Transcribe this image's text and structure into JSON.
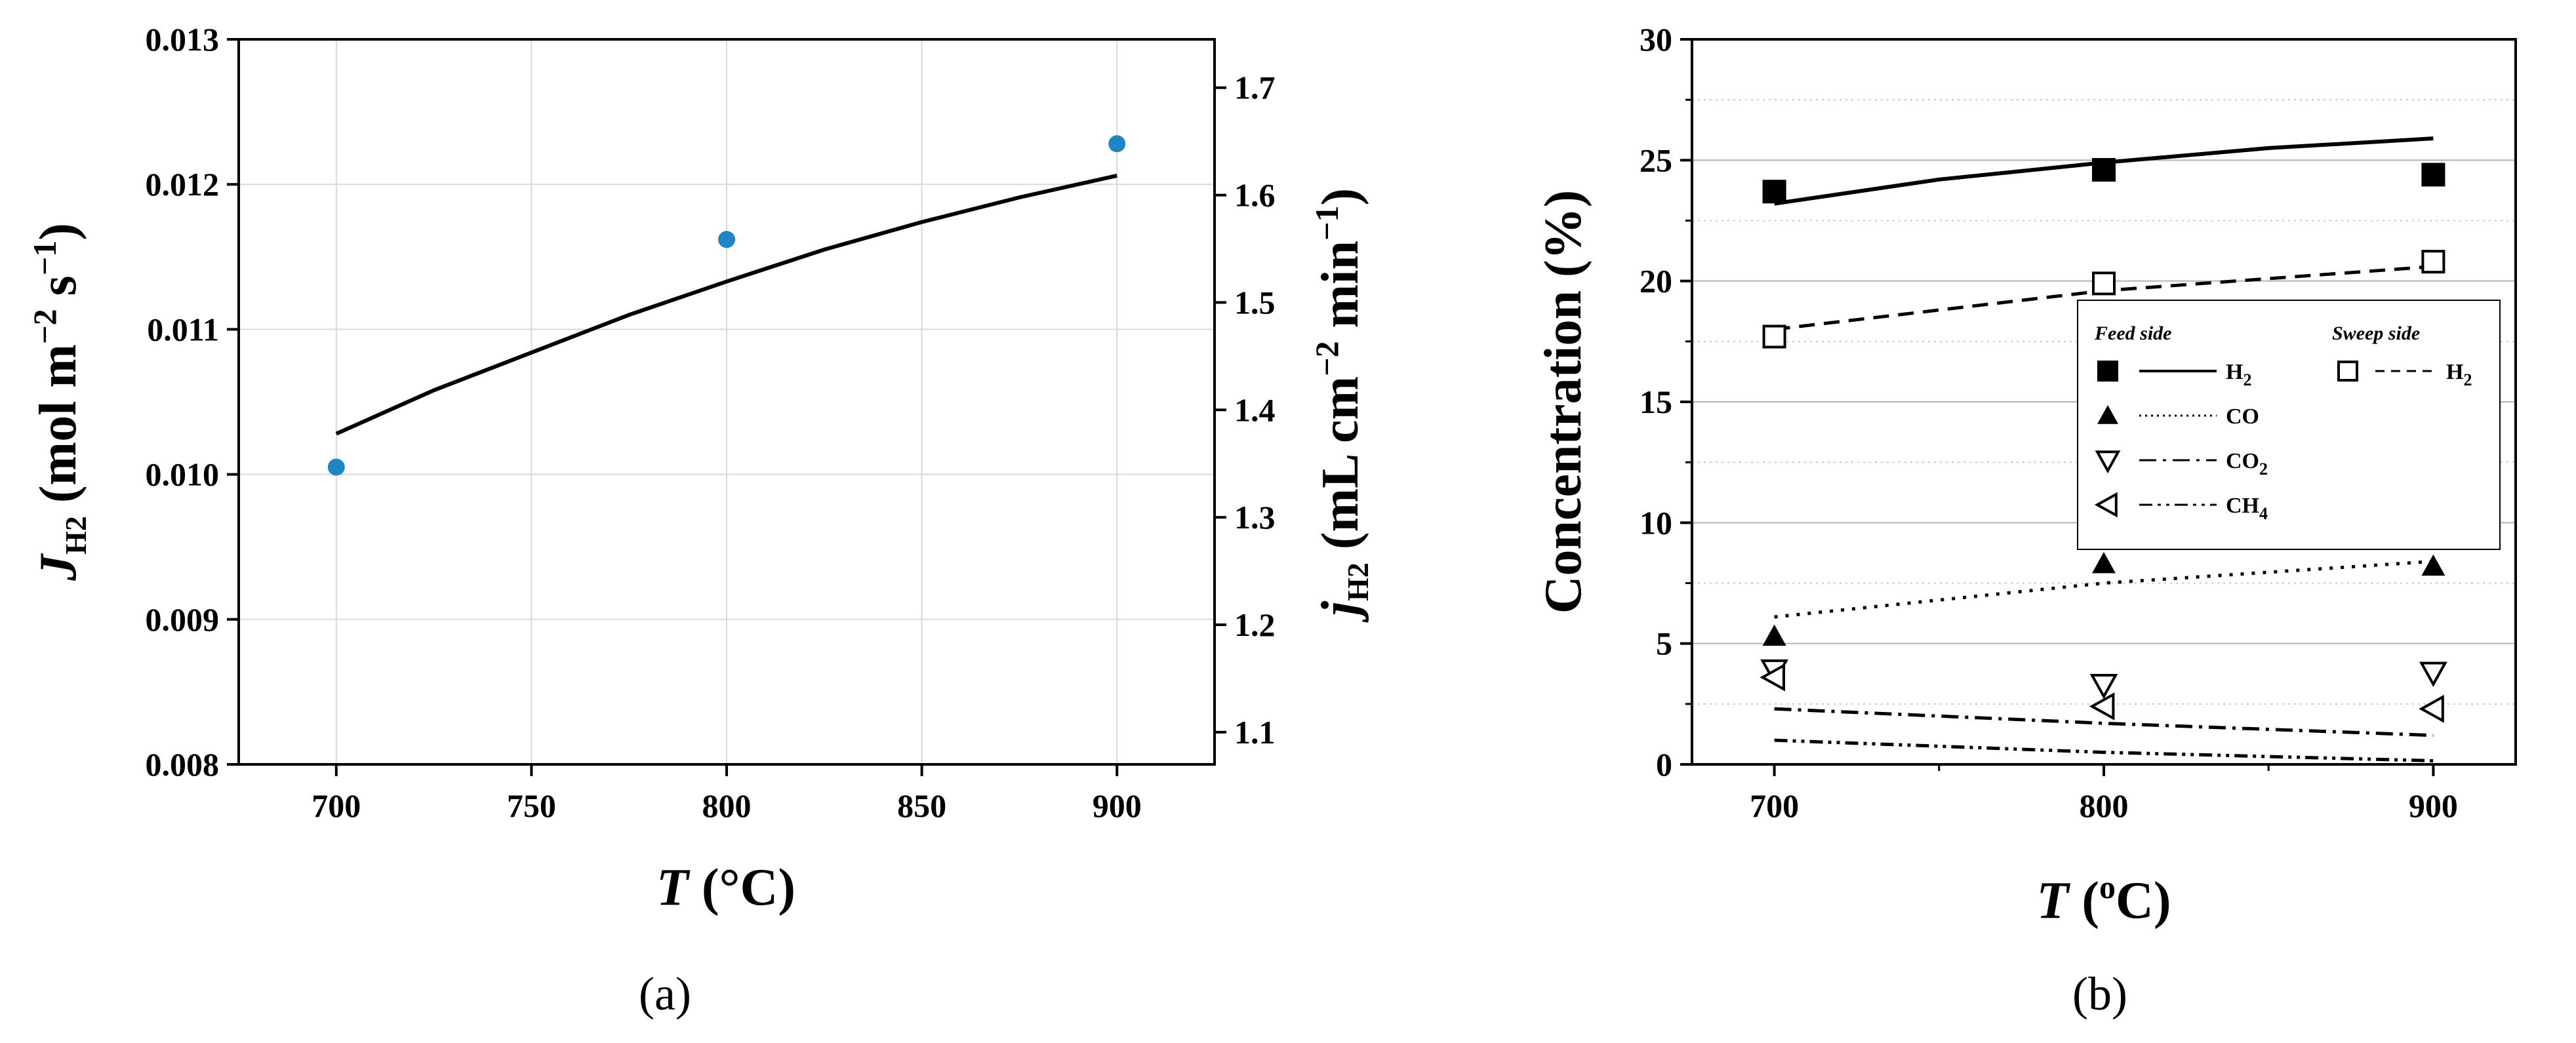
{
  "colors": {
    "point_a": "#1f86c6",
    "line": "#000000",
    "grid": "#d9d9d9",
    "grid_b": "#b3b3b3"
  },
  "chart_data": [
    {
      "id": "a",
      "type": "scatter",
      "panel_label": "(a)",
      "xlabel": "T (°C)",
      "ylabel": "J_H2 (mol m^-2 s^-1)",
      "ylabel_right": "j_H2 (mL cm^-2 min^-1)",
      "xlim": [
        675,
        925
      ],
      "ylim": [
        0.008,
        0.013
      ],
      "ylim_right": [
        1.07,
        1.745
      ],
      "xticks": [
        "700",
        "750",
        "800",
        "850",
        "900"
      ],
      "yticks": [
        "0.008",
        "0.009",
        "0.010",
        "0.011",
        "0.012",
        "0.013"
      ],
      "yticks_right": [
        "1.1",
        "1.2",
        "1.3",
        "1.4",
        "1.5",
        "1.6",
        "1.7"
      ],
      "grid": true,
      "points": {
        "x": [
          700,
          800,
          900
        ],
        "y": [
          0.01005,
          0.01162,
          0.01228
        ]
      },
      "line": {
        "x": [
          700,
          725,
          750,
          775,
          800,
          825,
          850,
          875,
          900
        ],
        "y": [
          0.01028,
          0.01058,
          0.01084,
          0.0111,
          0.01133,
          0.01155,
          0.01174,
          0.01191,
          0.01206
        ]
      }
    },
    {
      "id": "b",
      "type": "scatter",
      "panel_label": "(b)",
      "xlabel": "T (oC)",
      "ylabel": "Concentration (%)",
      "xlim": [
        675,
        925
      ],
      "ylim": [
        0,
        30
      ],
      "xticks": [
        "700",
        "800",
        "900"
      ],
      "yticks": [
        "0",
        "5",
        "10",
        "15",
        "20",
        "25",
        "30"
      ],
      "grid": true,
      "legend": {
        "placement": "right-middle",
        "feed_header": "Feed side",
        "sweep_header": "Sweep side",
        "entries": [
          {
            "label": "H",
            "sub": "2",
            "marker": "filled-square",
            "dash": "solid"
          },
          {
            "label": "CO",
            "sub": "",
            "marker": "filled-triangle",
            "dash": "dot"
          },
          {
            "label": "CO",
            "sub": "2",
            "marker": "open-triangle-down",
            "dash": "dashdot"
          },
          {
            "label": "CH",
            "sub": "4",
            "marker": "open-triangle-left",
            "dash": "dashdotdot"
          }
        ],
        "sweep_entry": {
          "label": "H",
          "sub": "2",
          "marker": "open-square",
          "dash": "dash"
        }
      },
      "series": [
        {
          "name": "Feed H2 (exp)",
          "marker": "filled-square",
          "x": [
            700,
            800,
            900
          ],
          "y": [
            23.7,
            24.6,
            24.4
          ]
        },
        {
          "name": "Feed H2 (model)",
          "line": "solid",
          "x": [
            700,
            750,
            800,
            850,
            900
          ],
          "y": [
            23.2,
            24.2,
            24.9,
            25.5,
            25.9
          ]
        },
        {
          "name": "Sweep H2 (exp)",
          "marker": "open-square",
          "x": [
            700,
            800,
            900
          ],
          "y": [
            17.7,
            19.9,
            20.8
          ]
        },
        {
          "name": "Sweep H2 (model)",
          "line": "dash",
          "x": [
            700,
            800,
            900
          ],
          "y": [
            18.0,
            19.6,
            20.6
          ]
        },
        {
          "name": "CO (exp)",
          "marker": "filled-triangle",
          "x": [
            700,
            800,
            900
          ],
          "y": [
            5.3,
            8.3,
            8.2
          ]
        },
        {
          "name": "CO (model)",
          "line": "dot",
          "x": [
            700,
            800,
            900
          ],
          "y": [
            6.1,
            7.5,
            8.4
          ]
        },
        {
          "name": "CO2 (exp)",
          "marker": "open-triangle-down",
          "x": [
            700,
            800,
            900
          ],
          "y": [
            3.9,
            3.3,
            3.8
          ]
        },
        {
          "name": "CO2 (model)",
          "line": "dashdot",
          "x": [
            700,
            800,
            900
          ],
          "y": [
            2.3,
            1.7,
            1.2
          ]
        },
        {
          "name": "CH4 (exp)",
          "marker": "open-triangle-left",
          "x": [
            700,
            800,
            900
          ],
          "y": [
            3.6,
            2.4,
            2.3
          ]
        },
        {
          "name": "CH4 (model)",
          "line": "dashdotdot",
          "x": [
            700,
            800,
            900
          ],
          "y": [
            1.0,
            0.5,
            0.15
          ]
        }
      ]
    }
  ]
}
